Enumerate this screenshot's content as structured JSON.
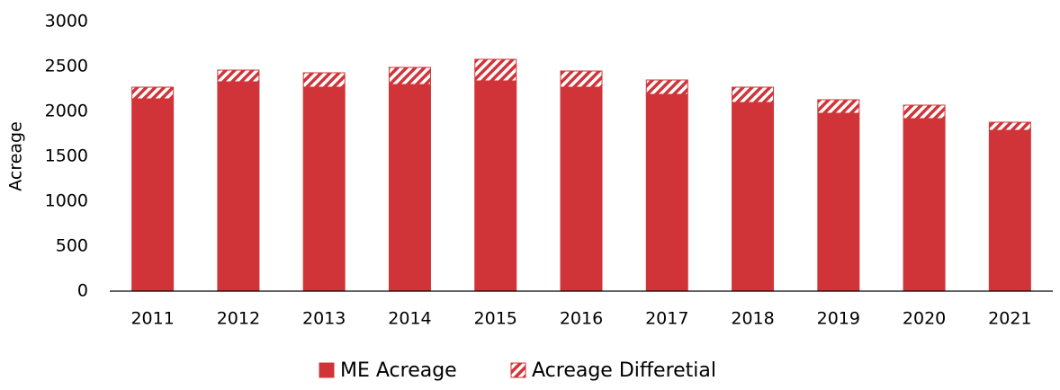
{
  "chart_data": {
    "type": "stacked_bar",
    "y_label": "Acreage",
    "categories": [
      "2011",
      "2012",
      "2013",
      "2014",
      "2015",
      "2016",
      "2017",
      "2018",
      "2019",
      "2020",
      "2021"
    ],
    "series": [
      {
        "name": "ME Acreage",
        "color": "#d13438",
        "values": [
          2140,
          2330,
          2270,
          2300,
          2340,
          2270,
          2190,
          2100,
          1980,
          1920,
          1790
        ]
      },
      {
        "name": "Acreage Differetial",
        "color": "#d13438",
        "pattern": "hatch",
        "values": [
          130,
          130,
          160,
          190,
          240,
          180,
          160,
          170,
          150,
          150,
          90
        ]
      }
    ],
    "ylim": [
      0,
      3000
    ],
    "yticks": [
      0,
      500,
      1000,
      1500,
      2000,
      2500,
      3000
    ],
    "grid": false,
    "legend": "bottom"
  }
}
